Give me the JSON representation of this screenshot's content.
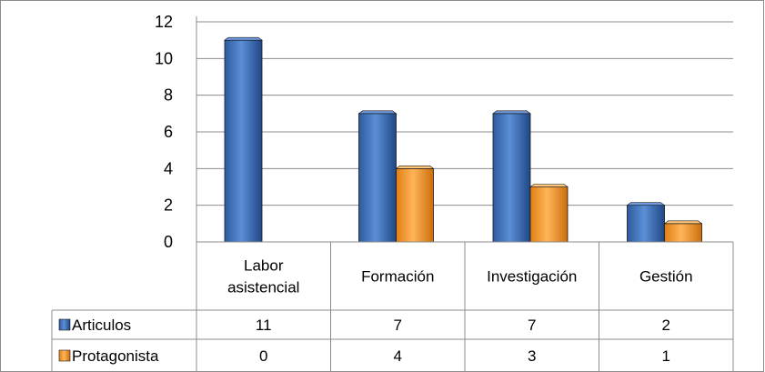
{
  "chart_data": {
    "type": "bar",
    "categories": [
      [
        "Labor",
        "asistencial"
      ],
      [
        "Formación"
      ],
      [
        "Investigación"
      ],
      [
        "Gestión"
      ]
    ],
    "series": [
      {
        "name": "Articulos",
        "values": [
          11,
          7,
          7,
          2
        ],
        "color": "#3A6FBE"
      },
      {
        "name": "Protagonista",
        "values": [
          0,
          4,
          3,
          1
        ],
        "color": "#F39A2E"
      }
    ],
    "ylim": [
      0,
      12
    ],
    "yticks": [
      0,
      2,
      4,
      6,
      8,
      10,
      12
    ],
    "grid": true,
    "legend": "data-table"
  }
}
